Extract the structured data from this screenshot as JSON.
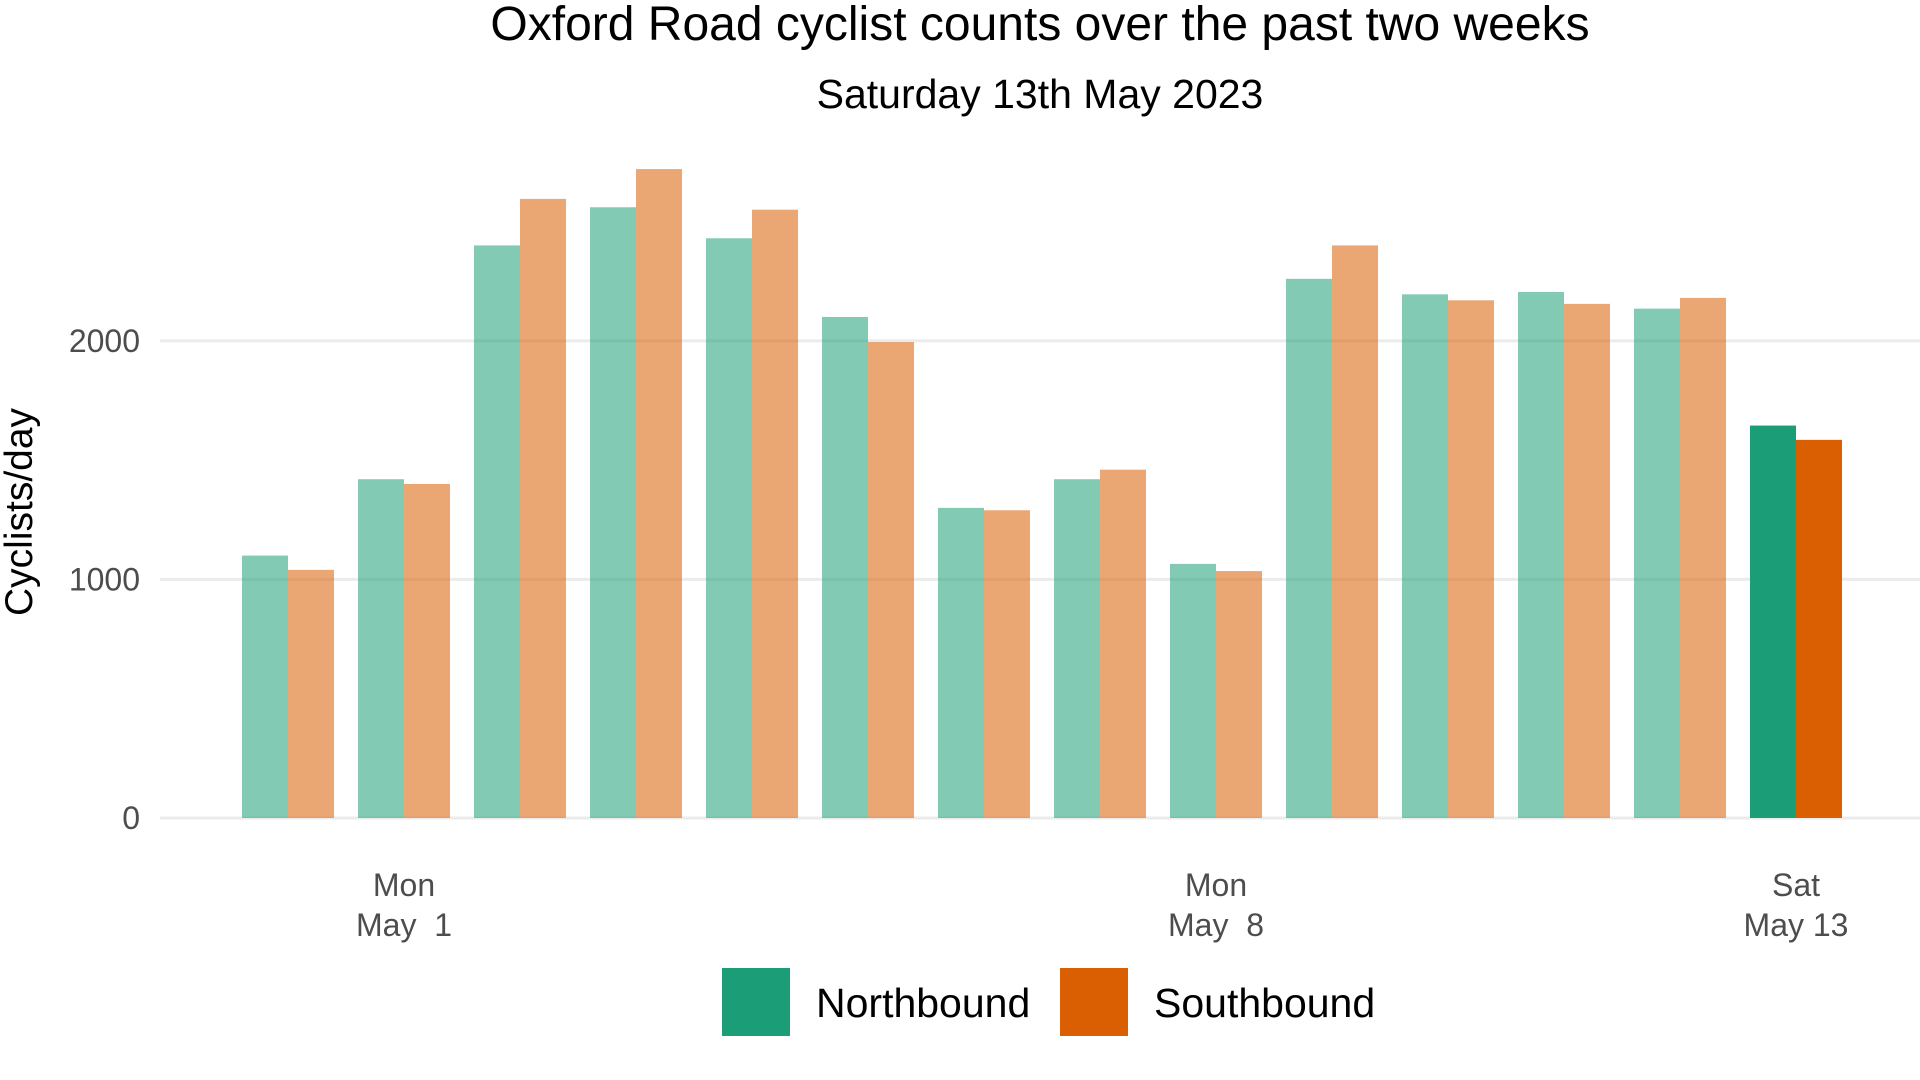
{
  "chart_data": {
    "type": "bar",
    "title": "Oxford Road cyclist counts over the past two weeks",
    "subtitle": "Saturday 13th May 2023",
    "xlabel": "",
    "ylabel": "Cyclists/day",
    "ylim": [
      0,
      2800
    ],
    "yticks": [
      0,
      1000,
      2000
    ],
    "grid": true,
    "legend_position": "bottom",
    "categories": [
      "2023-04-30",
      "2023-05-01",
      "2023-05-02",
      "2023-05-03",
      "2023-05-04",
      "2023-05-05",
      "2023-05-06",
      "2023-05-07",
      "2023-05-08",
      "2023-05-09",
      "2023-05-10",
      "2023-05-11",
      "2023-05-12",
      "2023-05-13"
    ],
    "x_tick_labels": [
      {
        "category": "2023-05-01",
        "lines": [
          "Mon",
          "May  1"
        ]
      },
      {
        "category": "2023-05-08",
        "lines": [
          "Mon",
          "May  8"
        ]
      },
      {
        "category": "2023-05-13",
        "lines": [
          "Sat",
          "May 13"
        ]
      }
    ],
    "highlight_category": "2023-05-13",
    "series": [
      {
        "name": "Northbound",
        "color": "#1b9e77",
        "values": [
          1100,
          1420,
          2400,
          2560,
          2430,
          2100,
          1300,
          1420,
          1065,
          2260,
          2195,
          2205,
          2135,
          1645
        ]
      },
      {
        "name": "Southbound",
        "color": "#d95f02",
        "values": [
          1040,
          1400,
          2595,
          2720,
          2550,
          1995,
          1290,
          1460,
          1035,
          2400,
          2170,
          2155,
          2180,
          1585
        ]
      }
    ]
  }
}
